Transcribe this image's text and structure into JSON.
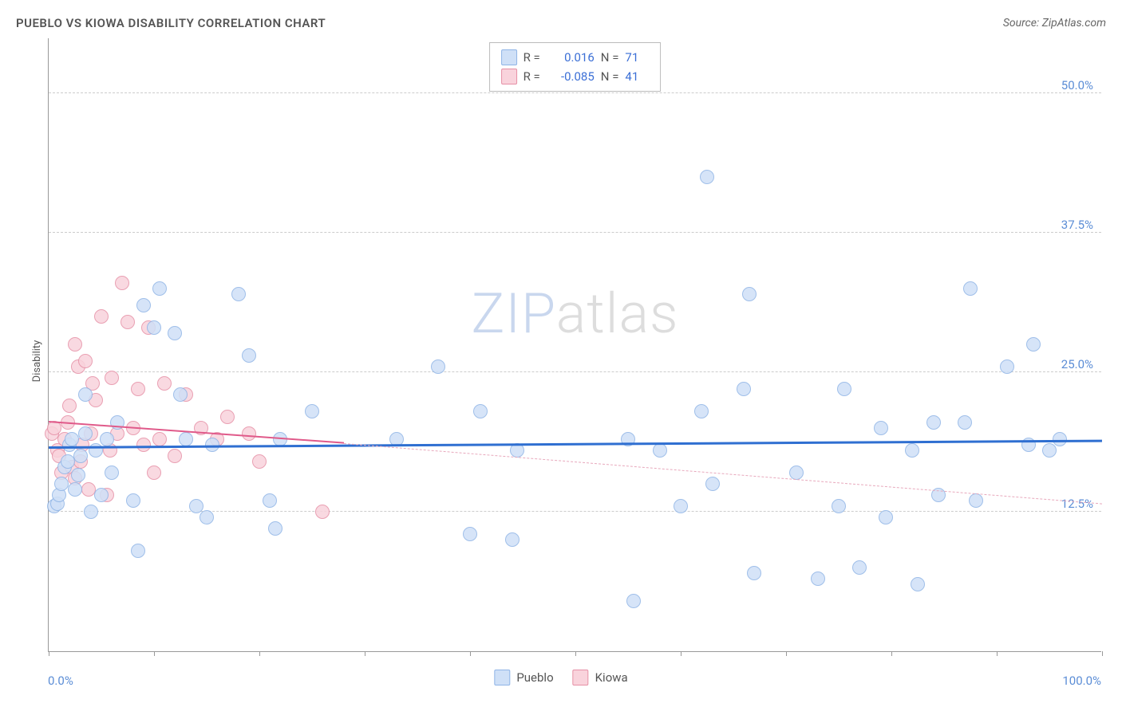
{
  "header": {
    "title": "PUEBLO VS KIOWA DISABILITY CORRELATION CHART",
    "source": "Source: ZipAtlas.com"
  },
  "watermark": {
    "text_a": "ZIP",
    "text_b": "atlas",
    "color_a": "#c9d7ee",
    "color_b": "#dddddd"
  },
  "chart": {
    "type": "scatter",
    "ylabel": "Disability",
    "xlim": [
      0,
      100
    ],
    "ylim": [
      0,
      55
    ],
    "xaxis_labels": {
      "min": "0.0%",
      "max": "100.0%"
    },
    "xticks": [
      0,
      10,
      20,
      30,
      40,
      50,
      60,
      70,
      80,
      90,
      100
    ],
    "yticks": [
      {
        "v": 12.5,
        "label": "12.5%"
      },
      {
        "v": 25.0,
        "label": "25.0%"
      },
      {
        "v": 37.5,
        "label": "37.5%"
      },
      {
        "v": 50.0,
        "label": "50.0%"
      }
    ],
    "grid_color": "#cccccc",
    "axis_color": "#999999",
    "background_color": "#ffffff",
    "tick_label_color": "#5b8dd6",
    "series": {
      "pueblo": {
        "label": "Pueblo",
        "fill": "#cfe0f7",
        "stroke": "#8fb4e6",
        "marker_radius": 9,
        "R": "0.016",
        "N": "71",
        "trend": {
          "x1": 0,
          "y1": 18.2,
          "x2": 100,
          "y2": 18.8,
          "color": "#2f6fd1",
          "width": 2.5
        },
        "points": [
          {
            "x": 0.5,
            "y": 13.0
          },
          {
            "x": 0.8,
            "y": 13.2
          },
          {
            "x": 1.0,
            "y": 14.0
          },
          {
            "x": 1.2,
            "y": 15.0
          },
          {
            "x": 1.5,
            "y": 16.5
          },
          {
            "x": 1.8,
            "y": 17.0
          },
          {
            "x": 2.0,
            "y": 18.5
          },
          {
            "x": 2.2,
            "y": 19.0
          },
          {
            "x": 2.5,
            "y": 14.5
          },
          {
            "x": 2.8,
            "y": 15.8
          },
          {
            "x": 3.0,
            "y": 17.5
          },
          {
            "x": 3.5,
            "y": 19.5
          },
          {
            "x": 3.5,
            "y": 23.0
          },
          {
            "x": 4.0,
            "y": 12.5
          },
          {
            "x": 4.5,
            "y": 18.0
          },
          {
            "x": 5.0,
            "y": 14.0
          },
          {
            "x": 5.5,
            "y": 19.0
          },
          {
            "x": 6.0,
            "y": 16.0
          },
          {
            "x": 6.5,
            "y": 20.5
          },
          {
            "x": 8.0,
            "y": 13.5
          },
          {
            "x": 8.5,
            "y": 9.0
          },
          {
            "x": 9.0,
            "y": 31.0
          },
          {
            "x": 10.0,
            "y": 29.0
          },
          {
            "x": 10.5,
            "y": 32.5
          },
          {
            "x": 12.0,
            "y": 28.5
          },
          {
            "x": 12.5,
            "y": 23.0
          },
          {
            "x": 13.0,
            "y": 19.0
          },
          {
            "x": 14.0,
            "y": 13.0
          },
          {
            "x": 15.0,
            "y": 12.0
          },
          {
            "x": 15.5,
            "y": 18.5
          },
          {
            "x": 18.0,
            "y": 32.0
          },
          {
            "x": 19.0,
            "y": 26.5
          },
          {
            "x": 21.0,
            "y": 13.5
          },
          {
            "x": 21.5,
            "y": 11.0
          },
          {
            "x": 22.0,
            "y": 19.0
          },
          {
            "x": 25.0,
            "y": 21.5
          },
          {
            "x": 33.0,
            "y": 19.0
          },
          {
            "x": 37.0,
            "y": 25.5
          },
          {
            "x": 40.0,
            "y": 10.5
          },
          {
            "x": 41.0,
            "y": 21.5
          },
          {
            "x": 44.0,
            "y": 10.0
          },
          {
            "x": 44.5,
            "y": 18.0
          },
          {
            "x": 55.0,
            "y": 19.0
          },
          {
            "x": 55.5,
            "y": 4.5
          },
          {
            "x": 58.0,
            "y": 18.0
          },
          {
            "x": 60.0,
            "y": 13.0
          },
          {
            "x": 62.0,
            "y": 21.5
          },
          {
            "x": 62.5,
            "y": 42.5
          },
          {
            "x": 63.0,
            "y": 15.0
          },
          {
            "x": 66.0,
            "y": 23.5
          },
          {
            "x": 66.5,
            "y": 32.0
          },
          {
            "x": 67.0,
            "y": 7.0
          },
          {
            "x": 71.0,
            "y": 16.0
          },
          {
            "x": 73.0,
            "y": 6.5
          },
          {
            "x": 75.0,
            "y": 13.0
          },
          {
            "x": 75.5,
            "y": 23.5
          },
          {
            "x": 77.0,
            "y": 7.5
          },
          {
            "x": 79.0,
            "y": 20.0
          },
          {
            "x": 79.5,
            "y": 12.0
          },
          {
            "x": 82.0,
            "y": 18.0
          },
          {
            "x": 82.5,
            "y": 6.0
          },
          {
            "x": 84.0,
            "y": 20.5
          },
          {
            "x": 84.5,
            "y": 14.0
          },
          {
            "x": 87.0,
            "y": 20.5
          },
          {
            "x": 87.5,
            "y": 32.5
          },
          {
            "x": 88.0,
            "y": 13.5
          },
          {
            "x": 91.0,
            "y": 25.5
          },
          {
            "x": 93.0,
            "y": 18.5
          },
          {
            "x": 93.5,
            "y": 27.5
          },
          {
            "x": 95.0,
            "y": 18.0
          },
          {
            "x": 96.0,
            "y": 19.0
          }
        ]
      },
      "kiowa": {
        "label": "Kiowa",
        "fill": "#f9d3dc",
        "stroke": "#e690a6",
        "marker_radius": 9,
        "R": "-0.085",
        "N": "41",
        "trend_solid": {
          "x1": 0,
          "y1": 20.5,
          "x2": 28,
          "y2": 18.6,
          "color": "#e05a8a",
          "width": 2
        },
        "trend_dashed": {
          "x1": 28,
          "y1": 18.6,
          "x2": 100,
          "y2": 13.2,
          "color": "#e8a8bc",
          "width": 1.5
        },
        "points": [
          {
            "x": 0.3,
            "y": 19.5
          },
          {
            "x": 0.5,
            "y": 20.0
          },
          {
            "x": 0.8,
            "y": 18.0
          },
          {
            "x": 1.0,
            "y": 17.5
          },
          {
            "x": 1.2,
            "y": 16.0
          },
          {
            "x": 1.5,
            "y": 19.0
          },
          {
            "x": 1.8,
            "y": 20.5
          },
          {
            "x": 2.0,
            "y": 22.0
          },
          {
            "x": 2.2,
            "y": 16.5
          },
          {
            "x": 2.5,
            "y": 15.5
          },
          {
            "x": 2.5,
            "y": 27.5
          },
          {
            "x": 2.8,
            "y": 25.5
          },
          {
            "x": 3.0,
            "y": 17.0
          },
          {
            "x": 3.2,
            "y": 18.5
          },
          {
            "x": 3.5,
            "y": 26.0
          },
          {
            "x": 3.8,
            "y": 14.5
          },
          {
            "x": 4.0,
            "y": 19.5
          },
          {
            "x": 4.2,
            "y": 24.0
          },
          {
            "x": 4.5,
            "y": 22.5
          },
          {
            "x": 5.0,
            "y": 30.0
          },
          {
            "x": 5.5,
            "y": 14.0
          },
          {
            "x": 5.8,
            "y": 18.0
          },
          {
            "x": 6.0,
            "y": 24.5
          },
          {
            "x": 6.5,
            "y": 19.5
          },
          {
            "x": 7.0,
            "y": 33.0
          },
          {
            "x": 7.5,
            "y": 29.5
          },
          {
            "x": 8.0,
            "y": 20.0
          },
          {
            "x": 8.5,
            "y": 23.5
          },
          {
            "x": 9.0,
            "y": 18.5
          },
          {
            "x": 9.5,
            "y": 29.0
          },
          {
            "x": 10.0,
            "y": 16.0
          },
          {
            "x": 10.5,
            "y": 19.0
          },
          {
            "x": 11.0,
            "y": 24.0
          },
          {
            "x": 12.0,
            "y": 17.5
          },
          {
            "x": 13.0,
            "y": 23.0
          },
          {
            "x": 14.5,
            "y": 20.0
          },
          {
            "x": 16.0,
            "y": 19.0
          },
          {
            "x": 17.0,
            "y": 21.0
          },
          {
            "x": 19.0,
            "y": 19.5
          },
          {
            "x": 20.0,
            "y": 17.0
          },
          {
            "x": 26.0,
            "y": 12.5
          }
        ]
      }
    },
    "legend_top": {
      "r_label": "R =",
      "n_label": "N ="
    }
  }
}
